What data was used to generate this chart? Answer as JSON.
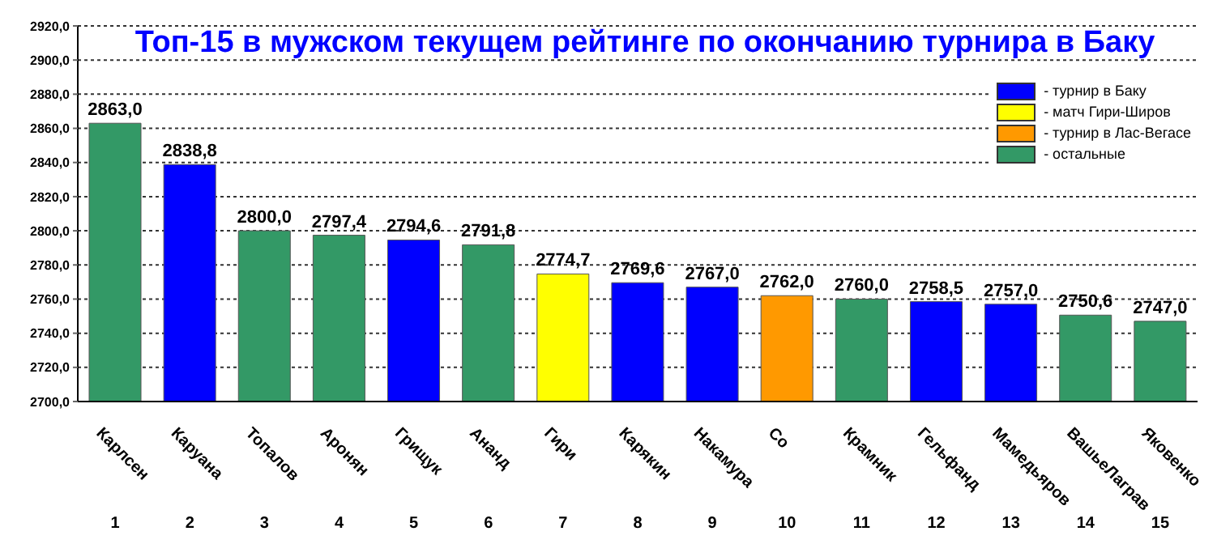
{
  "chart_data": {
    "type": "bar",
    "title": "Топ-15 в мужском текущем рейтинге по окончанию турнира в Баку",
    "categories": [
      "Карлсен",
      "Каруана",
      "Топалов",
      "Аронян",
      "Грищук",
      "Ананд",
      "Гири",
      "Карякин",
      "Накамура",
      "Со",
      "Крамник",
      "Гельфанд",
      "Мамедьяров",
      "ВашьеЛаграв",
      "Яковенко"
    ],
    "stacked": true,
    "series": [
      {
        "name": "- турнир в Баку",
        "color": "#0000ff",
        "values": [
          null,
          2838.8,
          null,
          null,
          2794.6,
          null,
          null,
          2769.6,
          2767.0,
          null,
          null,
          2758.5,
          2757.0,
          null,
          null
        ],
        "value_labels": [
          null,
          "2838,8",
          null,
          null,
          "2794,6",
          null,
          null,
          "2769,6",
          "2767,0",
          null,
          null,
          "2758,5",
          "2757,0",
          null,
          null
        ]
      },
      {
        "name": "- матч Гири-Широв",
        "color": "#ffff00",
        "values": [
          null,
          null,
          null,
          null,
          null,
          null,
          2774.7,
          null,
          null,
          null,
          null,
          null,
          null,
          null,
          null
        ],
        "value_labels": [
          null,
          null,
          null,
          null,
          null,
          null,
          "2774,7",
          null,
          null,
          null,
          null,
          null,
          null,
          null,
          null
        ]
      },
      {
        "name": "- турнир в Лас-Вегасе",
        "color": "#ff9900",
        "values": [
          null,
          null,
          null,
          null,
          null,
          null,
          null,
          null,
          null,
          2762.0,
          null,
          null,
          null,
          null,
          null
        ],
        "value_labels": [
          null,
          null,
          null,
          null,
          null,
          null,
          null,
          null,
          null,
          "2762,0",
          null,
          null,
          null,
          null,
          null
        ]
      },
      {
        "name": "- остальные",
        "color": "#339966",
        "values": [
          2863.0,
          null,
          2800.0,
          2797.4,
          null,
          2791.8,
          null,
          null,
          null,
          null,
          2760.0,
          null,
          null,
          2750.6,
          2747.0
        ],
        "value_labels": [
          "2863,0",
          null,
          "2800,0",
          "2797,4",
          null,
          "2791,8",
          null,
          null,
          null,
          null,
          "2760,0",
          null,
          null,
          "2750,6",
          "2747,0"
        ]
      }
    ],
    "ylim": [
      2700,
      2920
    ],
    "yticks": [
      {
        "value": 2700,
        "label": "2700,0"
      },
      {
        "value": 2720,
        "label": "2720,0"
      },
      {
        "value": 2740,
        "label": "2740,0"
      },
      {
        "value": 2760,
        "label": "2760,0"
      },
      {
        "value": 2780,
        "label": "2780,0"
      },
      {
        "value": 2800,
        "label": "2800,0"
      },
      {
        "value": 2820,
        "label": "2820,0"
      },
      {
        "value": 2840,
        "label": "2840,0"
      },
      {
        "value": 2860,
        "label": "2860,0"
      },
      {
        "value": 2880,
        "label": "2880,0"
      },
      {
        "value": 2900,
        "label": "2900,0"
      },
      {
        "value": 2920,
        "label": "2920,0"
      }
    ],
    "grid": "y",
    "legend": "top right",
    "annotations": [
      "1",
      "2",
      "3",
      "4",
      "5",
      "6",
      "7",
      "8",
      "9",
      "10",
      "11",
      "12",
      "13",
      "14",
      "15"
    ]
  }
}
